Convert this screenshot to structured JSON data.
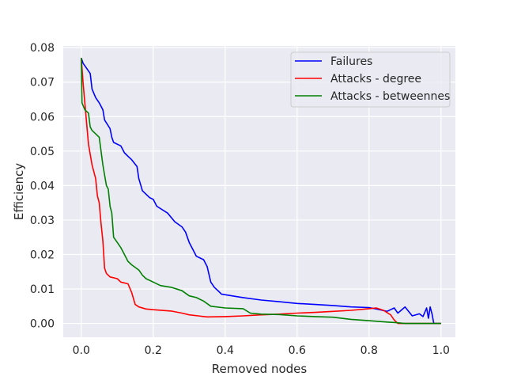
{
  "chart_data": {
    "type": "line",
    "xlabel": "Removed nodes",
    "ylabel": "Efficiency",
    "xlim": [
      -0.05,
      1.04
    ],
    "ylim": [
      -0.004,
      0.0805
    ],
    "x_ticks": [
      0.0,
      0.2,
      0.4,
      0.6,
      0.8,
      1.0
    ],
    "x_tick_labels": [
      "0.0",
      "0.2",
      "0.4",
      "0.6",
      "0.8",
      "1.0"
    ],
    "y_ticks": [
      0.0,
      0.01,
      0.02,
      0.03,
      0.04,
      0.05,
      0.06,
      0.07,
      0.08
    ],
    "y_tick_labels": [
      "0.00",
      "0.01",
      "0.02",
      "0.03",
      "0.04",
      "0.05",
      "0.06",
      "0.07",
      "0.08"
    ],
    "grid": true,
    "legend_position": "top-right",
    "style": {
      "plot_background": "#eaeaf2",
      "grid_color": "#ffffff"
    },
    "series": [
      {
        "name": "Failures",
        "color": "#0000ff",
        "points": [
          [
            0.0,
            0.077
          ],
          [
            0.005,
            0.0755
          ],
          [
            0.015,
            0.074
          ],
          [
            0.025,
            0.0725
          ],
          [
            0.03,
            0.068
          ],
          [
            0.04,
            0.0655
          ],
          [
            0.05,
            0.064
          ],
          [
            0.06,
            0.062
          ],
          [
            0.065,
            0.059
          ],
          [
            0.08,
            0.0565
          ],
          [
            0.085,
            0.054
          ],
          [
            0.09,
            0.0525
          ],
          [
            0.11,
            0.0515
          ],
          [
            0.12,
            0.0495
          ],
          [
            0.13,
            0.0485
          ],
          [
            0.14,
            0.0475
          ],
          [
            0.155,
            0.0455
          ],
          [
            0.16,
            0.042
          ],
          [
            0.17,
            0.0385
          ],
          [
            0.19,
            0.0365
          ],
          [
            0.2,
            0.036
          ],
          [
            0.21,
            0.034
          ],
          [
            0.24,
            0.032
          ],
          [
            0.26,
            0.0295
          ],
          [
            0.28,
            0.028
          ],
          [
            0.29,
            0.0265
          ],
          [
            0.3,
            0.0235
          ],
          [
            0.31,
            0.0215
          ],
          [
            0.32,
            0.0195
          ],
          [
            0.34,
            0.0185
          ],
          [
            0.35,
            0.0165
          ],
          [
            0.36,
            0.012
          ],
          [
            0.37,
            0.0105
          ],
          [
            0.38,
            0.0095
          ],
          [
            0.39,
            0.0085
          ],
          [
            0.45,
            0.0075
          ],
          [
            0.5,
            0.0068
          ],
          [
            0.55,
            0.0063
          ],
          [
            0.6,
            0.0058
          ],
          [
            0.65,
            0.0055
          ],
          [
            0.7,
            0.0052
          ],
          [
            0.75,
            0.0048
          ],
          [
            0.8,
            0.0046
          ],
          [
            0.83,
            0.004
          ],
          [
            0.85,
            0.0035
          ],
          [
            0.87,
            0.0045
          ],
          [
            0.88,
            0.003
          ],
          [
            0.9,
            0.0048
          ],
          [
            0.92,
            0.0022
          ],
          [
            0.94,
            0.0028
          ],
          [
            0.95,
            0.002
          ],
          [
            0.96,
            0.0045
          ],
          [
            0.965,
            0.0015
          ],
          [
            0.97,
            0.0048
          ],
          [
            0.975,
            0.0028
          ],
          [
            0.98,
            0.0
          ],
          [
            1.0,
            0.0
          ]
        ]
      },
      {
        "name": "Attacks - degree",
        "color": "#ff0000",
        "points": [
          [
            0.0,
            0.077
          ],
          [
            0.005,
            0.07
          ],
          [
            0.01,
            0.064
          ],
          [
            0.015,
            0.058
          ],
          [
            0.02,
            0.052
          ],
          [
            0.03,
            0.046
          ],
          [
            0.04,
            0.042
          ],
          [
            0.045,
            0.037
          ],
          [
            0.05,
            0.035
          ],
          [
            0.055,
            0.029
          ],
          [
            0.06,
            0.024
          ],
          [
            0.065,
            0.016
          ],
          [
            0.07,
            0.0145
          ],
          [
            0.08,
            0.0135
          ],
          [
            0.1,
            0.013
          ],
          [
            0.11,
            0.012
          ],
          [
            0.13,
            0.0115
          ],
          [
            0.14,
            0.009
          ],
          [
            0.15,
            0.0055
          ],
          [
            0.16,
            0.0048
          ],
          [
            0.18,
            0.0042
          ],
          [
            0.2,
            0.004
          ],
          [
            0.25,
            0.0036
          ],
          [
            0.28,
            0.003
          ],
          [
            0.3,
            0.0025
          ],
          [
            0.35,
            0.0019
          ],
          [
            0.4,
            0.002
          ],
          [
            0.45,
            0.0022
          ],
          [
            0.5,
            0.0025
          ],
          [
            0.55,
            0.0027
          ],
          [
            0.6,
            0.003
          ],
          [
            0.65,
            0.0032
          ],
          [
            0.7,
            0.0035
          ],
          [
            0.75,
            0.0038
          ],
          [
            0.8,
            0.0043
          ],
          [
            0.82,
            0.0045
          ],
          [
            0.84,
            0.0038
          ],
          [
            0.86,
            0.0025
          ],
          [
            0.87,
            0.001
          ],
          [
            0.88,
            0.0
          ],
          [
            1.0,
            0.0
          ]
        ]
      },
      {
        "name": "Attacks - betweennes",
        "color": "#008000",
        "points": [
          [
            0.0,
            0.077
          ],
          [
            0.002,
            0.064
          ],
          [
            0.01,
            0.062
          ],
          [
            0.02,
            0.061
          ],
          [
            0.025,
            0.057
          ],
          [
            0.03,
            0.056
          ],
          [
            0.04,
            0.055
          ],
          [
            0.05,
            0.054
          ],
          [
            0.055,
            0.05
          ],
          [
            0.06,
            0.046
          ],
          [
            0.065,
            0.043
          ],
          [
            0.07,
            0.04
          ],
          [
            0.075,
            0.039
          ],
          [
            0.08,
            0.034
          ],
          [
            0.085,
            0.032
          ],
          [
            0.09,
            0.025
          ],
          [
            0.1,
            0.0235
          ],
          [
            0.11,
            0.022
          ],
          [
            0.12,
            0.02
          ],
          [
            0.13,
            0.018
          ],
          [
            0.14,
            0.017
          ],
          [
            0.16,
            0.0155
          ],
          [
            0.17,
            0.014
          ],
          [
            0.18,
            0.013
          ],
          [
            0.2,
            0.012
          ],
          [
            0.22,
            0.011
          ],
          [
            0.25,
            0.0105
          ],
          [
            0.28,
            0.0095
          ],
          [
            0.3,
            0.008
          ],
          [
            0.32,
            0.0075
          ],
          [
            0.34,
            0.0065
          ],
          [
            0.36,
            0.005
          ],
          [
            0.4,
            0.0045
          ],
          [
            0.45,
            0.0043
          ],
          [
            0.47,
            0.003
          ],
          [
            0.5,
            0.0027
          ],
          [
            0.55,
            0.0026
          ],
          [
            0.6,
            0.0022
          ],
          [
            0.65,
            0.002
          ],
          [
            0.7,
            0.0018
          ],
          [
            0.75,
            0.0012
          ],
          [
            0.8,
            0.0008
          ],
          [
            0.85,
            0.0004
          ],
          [
            0.88,
            0.0002
          ],
          [
            0.9,
            0.0
          ],
          [
            1.0,
            0.0
          ]
        ]
      }
    ]
  }
}
